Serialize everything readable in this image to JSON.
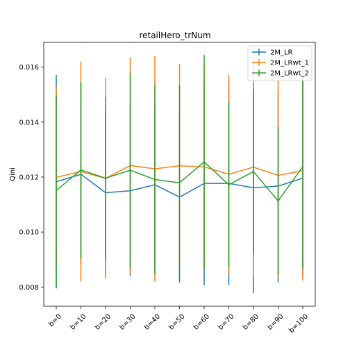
{
  "chart_data": {
    "type": "line",
    "title": "retailHero_trNum",
    "xlabel": "",
    "ylabel": "Qini",
    "categories": [
      "b=0",
      "b=10",
      "b=20",
      "b=30",
      "b=40",
      "b=50",
      "b=60",
      "b=70",
      "b=80",
      "b=90",
      "b=100"
    ],
    "ylim": [
      0.0073,
      0.0169
    ],
    "yticks": [
      0.008,
      0.01,
      0.012,
      0.014,
      0.016
    ],
    "ytick_labels": [
      "0.008",
      "0.010",
      "0.012",
      "0.014",
      "0.016"
    ],
    "legend_position": "top-right",
    "error_bars": true,
    "series": [
      {
        "name": "2M_LR",
        "color": "#1f77b4",
        "values": [
          0.01183,
          0.0121,
          0.01143,
          0.0115,
          0.01172,
          0.01127,
          0.01177,
          0.01177,
          0.01161,
          0.01167,
          0.01196
        ],
        "errors": [
          0.00388,
          0.0033,
          0.003,
          0.0031,
          0.003,
          0.0031,
          0.0037,
          0.0037,
          0.00383,
          0.0035,
          0.0036
        ]
      },
      {
        "name": "2M_LRwt_1",
        "color": "#ff7f0e",
        "values": [
          0.01199,
          0.0122,
          0.01195,
          0.01242,
          0.0123,
          0.01241,
          0.01237,
          0.0121,
          0.01236,
          0.01206,
          0.01223
        ],
        "errors": [
          0.0033,
          0.004,
          0.00365,
          0.00393,
          0.0041,
          0.0037,
          0.0037,
          0.00362,
          0.004,
          0.0037,
          0.004
        ]
      },
      {
        "name": "2M_LRwt_2",
        "color": "#2ca02c",
        "values": [
          0.01151,
          0.01226,
          0.01196,
          0.01225,
          0.01191,
          0.01179,
          0.01255,
          0.01172,
          0.0122,
          0.01113,
          0.01238
        ],
        "errors": [
          0.00345,
          0.0032,
          0.00295,
          0.00355,
          0.00345,
          0.00355,
          0.0039,
          0.003,
          0.003,
          0.0027,
          0.0037
        ]
      }
    ]
  }
}
